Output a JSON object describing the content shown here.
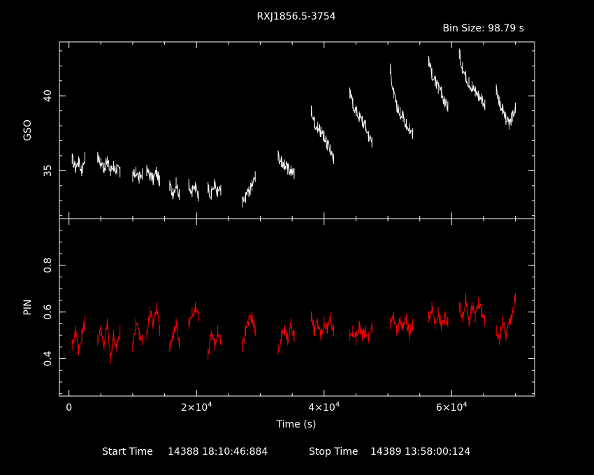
{
  "chart_data": {
    "type": "line",
    "title": "RXJ1856.5-3754",
    "subtitle": "Bin Size: 98.79 s",
    "xlabel": "Time (s)",
    "xlim": [
      -1500,
      73000
    ],
    "x_ticks": [
      {
        "value": 0,
        "label": "0"
      },
      {
        "value": 20000,
        "label": "2×10"
      },
      {
        "value": 40000,
        "label": "4×10"
      },
      {
        "value": 60000,
        "label": "6×10"
      }
    ],
    "x_tick_exponent": "4",
    "footer": {
      "start_label": "Start Time",
      "start_value": "14388 18:10:46:884",
      "stop_label": "Stop Time",
      "stop_value": "14389 13:58:00:124"
    },
    "panels": [
      {
        "name": "GSO",
        "ylabel": "GSO",
        "color": "#ffffff",
        "ylim": [
          31.8,
          43.6
        ],
        "y_ticks": [
          {
            "value": 35,
            "label": "35"
          },
          {
            "value": 40,
            "label": "40"
          }
        ],
        "segments": [
          {
            "x": [
              500,
              1000,
              1500,
              2000,
              2500
            ],
            "y": [
              35.8,
              35.2,
              35.6,
              35.0,
              35.9
            ]
          },
          {
            "x": [
              4500,
              5000,
              5500,
              6000,
              6500,
              7000,
              7500,
              8000
            ],
            "y": [
              35.9,
              35.5,
              35.2,
              35.6,
              35.0,
              35.3,
              35.1,
              34.9
            ]
          },
          {
            "x": [
              10000,
              10500,
              11000,
              11500
            ],
            "y": [
              34.6,
              34.9,
              34.5,
              34.8
            ]
          },
          {
            "x": [
              12200,
              12700,
              13200,
              13700,
              14200
            ],
            "y": [
              35.0,
              34.7,
              34.4,
              34.9,
              34.3
            ]
          },
          {
            "x": [
              15800,
              16300,
              16800,
              17300
            ],
            "y": [
              34.0,
              33.5,
              34.2,
              33.4
            ]
          },
          {
            "x": [
              18800,
              19300,
              19800,
              20300
            ],
            "y": [
              34.1,
              33.6,
              33.9,
              33.3
            ]
          },
          {
            "x": [
              21800,
              22300,
              22800,
              23300,
              23800
            ],
            "y": [
              33.9,
              33.4,
              34.1,
              33.6,
              33.7
            ]
          },
          {
            "x": [
              27200,
              27700,
              28200,
              28700,
              29200
            ],
            "y": [
              32.9,
              33.2,
              33.6,
              34.0,
              34.6
            ]
          },
          {
            "x": [
              32800,
              33300,
              33800,
              34300,
              34800,
              35300
            ],
            "y": [
              36.0,
              35.6,
              35.4,
              35.1,
              35.0,
              34.8
            ]
          },
          {
            "x": [
              38000,
              38500,
              39000,
              39500,
              40000,
              40500,
              41000,
              41500
            ],
            "y": [
              39.0,
              38.2,
              37.9,
              37.6,
              37.3,
              36.7,
              36.4,
              35.8
            ]
          },
          {
            "x": [
              44000,
              44500,
              45000,
              45500,
              46000,
              46500,
              47000,
              47500
            ],
            "y": [
              40.2,
              39.5,
              39.0,
              38.6,
              38.3,
              38.0,
              37.3,
              36.9
            ]
          },
          {
            "x": [
              50400,
              50900,
              51400,
              51900,
              52400,
              52900,
              53400,
              53900
            ],
            "y": [
              41.8,
              40.2,
              39.3,
              38.9,
              38.6,
              38.1,
              37.8,
              37.5
            ]
          },
          {
            "x": [
              56400,
              56900,
              57400,
              57900,
              58400,
              58900,
              59400
            ],
            "y": [
              42.3,
              41.5,
              41.0,
              40.5,
              40.2,
              39.6,
              39.3
            ]
          },
          {
            "x": [
              61200,
              61700,
              62200,
              62700,
              63200,
              63700,
              64200,
              64700,
              65200
            ],
            "y": [
              42.8,
              41.9,
              41.3,
              40.9,
              40.6,
              40.3,
              40.0,
              39.8,
              39.4
            ]
          },
          {
            "x": [
              67000,
              67500,
              68000,
              68500,
              69000,
              69500,
              70000
            ],
            "y": [
              40.4,
              39.6,
              39.1,
              38.4,
              38.1,
              38.6,
              39.2
            ]
          }
        ]
      },
      {
        "name": "PIN",
        "ylabel": "PIN",
        "color": "#ff0000",
        "ylim": [
          0.24,
          1.0
        ],
        "y_ticks": [
          {
            "value": 0.4,
            "label": "0.4"
          },
          {
            "value": 0.6,
            "label": "0.6"
          },
          {
            "value": 0.8,
            "label": "0.8"
          }
        ],
        "segments": [
          {
            "x": [
              500,
              1000,
              1500,
              2000,
              2500
            ],
            "y": [
              0.46,
              0.52,
              0.44,
              0.5,
              0.56
            ]
          },
          {
            "x": [
              4500,
              5000,
              5500,
              6000,
              6500,
              7000,
              7500,
              8000
            ],
            "y": [
              0.48,
              0.52,
              0.46,
              0.55,
              0.4,
              0.5,
              0.45,
              0.52
            ]
          },
          {
            "x": [
              10000,
              10500,
              11000,
              11500
            ],
            "y": [
              0.45,
              0.55,
              0.5,
              0.48
            ]
          },
          {
            "x": [
              12200,
              12700,
              13200,
              13700,
              14200
            ],
            "y": [
              0.5,
              0.6,
              0.55,
              0.62,
              0.52
            ]
          },
          {
            "x": [
              15800,
              16300,
              16800,
              17300
            ],
            "y": [
              0.45,
              0.5,
              0.55,
              0.47
            ]
          },
          {
            "x": [
              18800,
              19300,
              19800,
              20300
            ],
            "y": [
              0.55,
              0.6,
              0.62,
              0.58
            ]
          },
          {
            "x": [
              21800,
              22300,
              22800,
              23300,
              23800
            ],
            "y": [
              0.42,
              0.5,
              0.46,
              0.52,
              0.48
            ]
          },
          {
            "x": [
              27200,
              27700,
              28200,
              28700,
              29200
            ],
            "y": [
              0.45,
              0.52,
              0.56,
              0.58,
              0.52
            ]
          },
          {
            "x": [
              32800,
              33300,
              33800,
              34300,
              34800,
              35300
            ],
            "y": [
              0.44,
              0.5,
              0.52,
              0.48,
              0.55,
              0.5
            ]
          },
          {
            "x": [
              38000,
              38500,
              39000,
              39500,
              40000,
              40500,
              41000,
              41500
            ],
            "y": [
              0.58,
              0.52,
              0.55,
              0.5,
              0.56,
              0.53,
              0.58,
              0.52
            ]
          },
          {
            "x": [
              44000,
              44500,
              45000,
              45500,
              46000,
              46500,
              47000,
              47500
            ],
            "y": [
              0.5,
              0.52,
              0.48,
              0.54,
              0.5,
              0.52,
              0.49,
              0.53
            ]
          },
          {
            "x": [
              50400,
              50900,
              51400,
              51900,
              52400,
              52900,
              53400,
              53900
            ],
            "y": [
              0.55,
              0.58,
              0.52,
              0.56,
              0.54,
              0.57,
              0.5,
              0.55
            ]
          },
          {
            "x": [
              56400,
              56900,
              57400,
              57900,
              58400,
              58900,
              59400
            ],
            "y": [
              0.58,
              0.62,
              0.55,
              0.6,
              0.54,
              0.58,
              0.56
            ]
          },
          {
            "x": [
              61200,
              61700,
              62200,
              62700,
              63200,
              63700,
              64200,
              64700,
              65200
            ],
            "y": [
              0.62,
              0.58,
              0.66,
              0.56,
              0.62,
              0.58,
              0.64,
              0.6,
              0.56
            ]
          },
          {
            "x": [
              67000,
              67500,
              68000,
              68500,
              69000,
              69500,
              70000
            ],
            "y": [
              0.52,
              0.48,
              0.56,
              0.5,
              0.55,
              0.6,
              0.66
            ]
          }
        ]
      }
    ]
  }
}
